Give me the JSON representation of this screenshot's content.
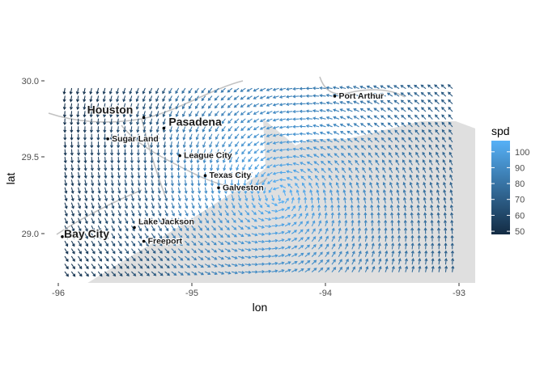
{
  "chart_data": {
    "type": "quiver",
    "title": "",
    "xlabel": "lon",
    "ylabel": "lat",
    "xlim": [
      -96.0,
      -92.9
    ],
    "ylim": [
      28.68,
      30.06
    ],
    "xticks": [
      -96,
      -95,
      -94,
      -93
    ],
    "xtick_labels": [
      "-96",
      "-95",
      "-94",
      "-93"
    ],
    "yticks": [
      29.0,
      29.5,
      30.0
    ],
    "ytick_labels": [
      "29.0",
      "29.5",
      "30.0"
    ],
    "grid": false,
    "arrow_grid": {
      "lon_start": -95.95,
      "lon_end": -93.05,
      "lon_step": 0.05,
      "lat_start": 28.75,
      "lat_end": 29.98,
      "lat_step": 0.05
    },
    "color_scale": {
      "name": "spd",
      "min": 48,
      "max": 107,
      "low_color": "#132B43",
      "high_color": "#56B1F7",
      "ticks": [
        50,
        60,
        70,
        80,
        90,
        100
      ],
      "tick_labels": [
        "50",
        "60",
        "70",
        "80",
        "90",
        "100"
      ]
    },
    "storm_center": {
      "lon": -94.35,
      "lat": 29.25
    },
    "land_color": "#dcdcdc",
    "cities": [
      {
        "name": "Houston",
        "lon": -95.36,
        "lat": 29.76,
        "size": "large"
      },
      {
        "name": "Pasadena",
        "lon": -95.21,
        "lat": 29.69,
        "size": "large"
      },
      {
        "name": "Port Arthur",
        "lon": -93.93,
        "lat": 29.9,
        "size": "small"
      },
      {
        "name": "Sugar Land",
        "lon": -95.63,
        "lat": 29.62,
        "size": "small"
      },
      {
        "name": "League City",
        "lon": -95.09,
        "lat": 29.51,
        "size": "small"
      },
      {
        "name": "Texas City",
        "lon": -94.9,
        "lat": 29.38,
        "size": "small"
      },
      {
        "name": "Galveston",
        "lon": -94.8,
        "lat": 29.3,
        "size": "small"
      },
      {
        "name": "Lake Jackson",
        "lon": -95.43,
        "lat": 29.04,
        "size": "small"
      },
      {
        "name": "Freeport",
        "lon": -95.36,
        "lat": 28.95,
        "size": "small"
      },
      {
        "name": "Bay City",
        "lon": -95.97,
        "lat": 28.98,
        "size": "large"
      }
    ]
  }
}
